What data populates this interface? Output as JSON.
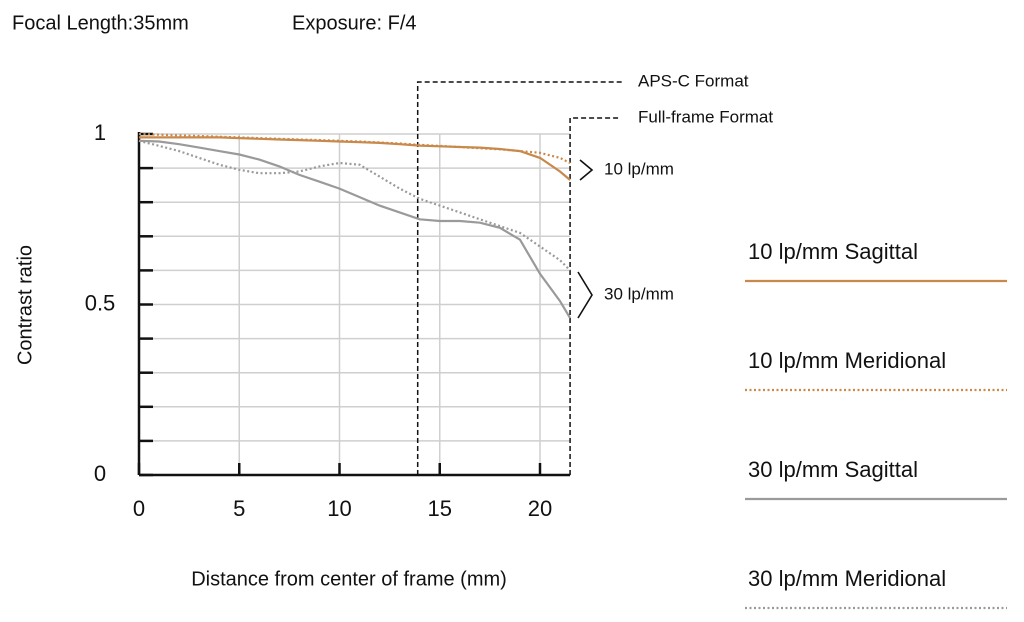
{
  "chart_data": {
    "type": "line",
    "title": "Focal Length:35mm",
    "subtitle": "Exposure: F/4",
    "xlabel": "Distance from center of frame (mm)",
    "ylabel": "Contrast ratio",
    "x": [
      0,
      1,
      2,
      3,
      4,
      5,
      6,
      7,
      8,
      9,
      10,
      11,
      12,
      13,
      14,
      15,
      16,
      17,
      18,
      19,
      20,
      21,
      21.5
    ],
    "series": [
      {
        "name": "10 lp/mm Sagittal",
        "color": "#c8894a",
        "dash": false,
        "values": [
          0.99,
          0.99,
          0.99,
          0.99,
          0.99,
          0.988,
          0.986,
          0.984,
          0.982,
          0.98,
          0.978,
          0.976,
          0.974,
          0.97,
          0.966,
          0.964,
          0.962,
          0.96,
          0.956,
          0.95,
          0.93,
          0.89,
          0.865
        ]
      },
      {
        "name": "10 lp/mm Meridional",
        "color": "#c8894a",
        "dash": true,
        "values": [
          1.0,
          0.998,
          0.996,
          0.994,
          0.992,
          0.99,
          0.988,
          0.986,
          0.984,
          0.982,
          0.98,
          0.978,
          0.975,
          0.972,
          0.968,
          0.965,
          0.962,
          0.958,
          0.955,
          0.95,
          0.945,
          0.93,
          0.915
        ]
      },
      {
        "name": "30 lp/mm Sagittal",
        "color": "#9a9a9a",
        "dash": false,
        "values": [
          0.98,
          0.978,
          0.97,
          0.96,
          0.95,
          0.94,
          0.925,
          0.905,
          0.88,
          0.86,
          0.84,
          0.815,
          0.79,
          0.77,
          0.75,
          0.745,
          0.745,
          0.74,
          0.725,
          0.69,
          0.59,
          0.51,
          0.46
        ]
      },
      {
        "name": "30 lp/mm Meridional",
        "color": "#9a9a9a",
        "dash": true,
        "values": [
          0.98,
          0.965,
          0.95,
          0.93,
          0.91,
          0.895,
          0.885,
          0.885,
          0.89,
          0.905,
          0.915,
          0.91,
          0.875,
          0.84,
          0.81,
          0.79,
          0.77,
          0.75,
          0.73,
          0.71,
          0.67,
          0.63,
          0.6
        ]
      }
    ],
    "xlim": [
      0,
      21.5
    ],
    "ylim": [
      0,
      1
    ],
    "xticks": [
      0,
      5,
      10,
      15,
      20
    ],
    "yticks": [
      0,
      0.5,
      1
    ],
    "yminorticks": [
      0.1,
      0.2,
      0.3,
      0.4,
      0.6,
      0.7,
      0.8,
      0.9
    ],
    "grid": true,
    "format_lines": [
      {
        "label": "APS-C Format",
        "x": 13.9
      },
      {
        "label": "Full-frame Format",
        "x": 21.5
      }
    ],
    "annotations": [
      "10 lp/mm",
      "30 lp/mm"
    ]
  }
}
